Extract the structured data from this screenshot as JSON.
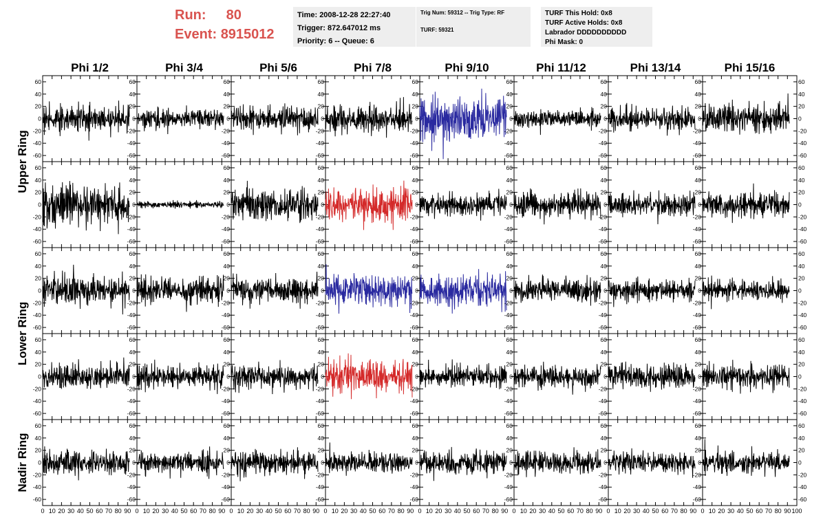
{
  "header": {
    "run_label": "Run:",
    "run_value": "80",
    "event_label": "Event:",
    "event_value": "8915012",
    "time": "Time: 2008-12-28 22:27:40",
    "trigger": "Trigger: 872.647012 ms",
    "priority": "Priority: 6 -- Queue: 6",
    "trig_num": "Trig Num: 59312 -- Trig Type: RF",
    "turf": "TURF: 59321",
    "turf_hold": "TURF This Hold: 0x8",
    "turf_active": "TURF Active Holds: 0x8",
    "labrador": "Labrador DDDDDDDDDD",
    "phi_mask": "Phi Mask: 0"
  },
  "colors": {
    "trace": "#000000",
    "blue_trace": "#2a2aa0",
    "red_trace": "#d42a2a",
    "header_red": "#d9534f",
    "box_bg": "#eeeeee"
  },
  "chart_data": {
    "type": "line",
    "columns": [
      "Phi 1/2",
      "Phi 3/4",
      "Phi 5/6",
      "Phi 7/8",
      "Phi 9/10",
      "Phi 11/12",
      "Phi 13/14",
      "Phi 15/16"
    ],
    "ring_labels": [
      "Upper Ring",
      "Lower Ring",
      "Nadir Ring"
    ],
    "rows_per_ring": [
      2,
      2,
      1
    ],
    "xlim": [
      0,
      100
    ],
    "ylim": [
      -70,
      70
    ],
    "x_ticks": [
      0,
      10,
      20,
      30,
      40,
      50,
      60,
      70,
      80,
      90,
      100
    ],
    "x_tick_labels": [
      "0",
      "10",
      "20",
      "30",
      "40",
      "50",
      "60",
      "70",
      "80",
      "90",
      "100"
    ],
    "y_ticks": [
      -60,
      -40,
      -20,
      0,
      20,
      40,
      60
    ],
    "y_tick_labels": [
      "-60",
      "-40",
      "-20",
      "0",
      "20",
      "40",
      "60"
    ],
    "waveform_x_range": [
      0,
      92
    ],
    "samples_per_trace": 260,
    "trace_rms": [
      [
        12,
        9,
        11,
        12,
        22,
        9,
        11,
        13
      ],
      [
        18,
        3,
        16,
        16,
        11,
        12,
        11,
        12
      ],
      [
        14,
        12,
        12,
        15,
        15,
        11,
        10,
        10
      ],
      [
        12,
        11,
        12,
        15,
        10,
        11,
        11,
        11
      ],
      [
        13,
        11,
        11,
        10,
        11,
        11,
        10,
        10
      ]
    ],
    "trace_colors": [
      [
        "black",
        "black",
        "black",
        "black",
        "blue",
        "black",
        "black",
        "black"
      ],
      [
        "black",
        "black",
        "black",
        "red",
        "black",
        "black",
        "black",
        "black"
      ],
      [
        "black",
        "black",
        "black",
        "blue",
        "blue",
        "black",
        "black",
        "black"
      ],
      [
        "black",
        "black",
        "black",
        "red",
        "black",
        "black",
        "black",
        "black"
      ],
      [
        "black",
        "black",
        "black",
        "black",
        "black",
        "black",
        "black",
        "black"
      ]
    ]
  }
}
